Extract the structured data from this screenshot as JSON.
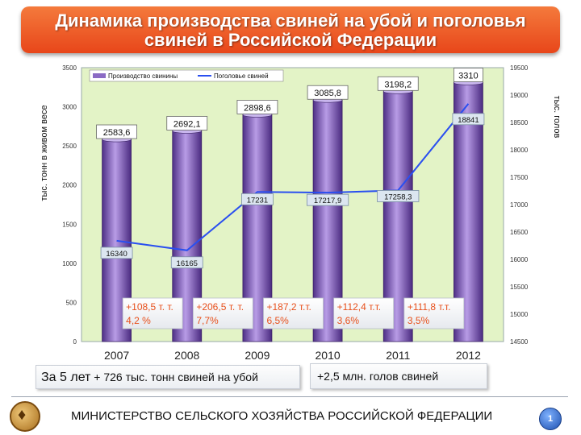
{
  "title": {
    "line1": "Динамика производства свиней на убой и поголовья",
    "line2": "свиней в Российской Федерации"
  },
  "chart_data": {
    "type": "bar+line",
    "categories": [
      "2007",
      "2008",
      "2009",
      "2010",
      "2011",
      "2012"
    ],
    "series": [
      {
        "name": "Производство свинины",
        "kind": "bar",
        "axis": "left",
        "values": [
          2583.6,
          2692.1,
          2898.6,
          3085.8,
          3198.2,
          3310
        ],
        "labels": [
          "2583,6",
          "2692,1",
          "2898,6",
          "3085,8",
          "3198,2",
          "3310"
        ]
      },
      {
        "name": "Поголовье свиней",
        "kind": "line",
        "axis": "right",
        "values": [
          16340,
          16165,
          17231,
          17217.9,
          17258.3,
          18841
        ],
        "labels": [
          "16340",
          "16165",
          "17231",
          "17217,9",
          "17258,3",
          "18841"
        ]
      }
    ],
    "ylabel_left": "тыс. тонн в живом весе",
    "ylabel_right": "тыс. голов",
    "ylim_left": [
      0,
      3500
    ],
    "ylim_right": [
      14500,
      19500
    ],
    "yticks_left": [
      0,
      500,
      1000,
      1500,
      2000,
      2500,
      3000,
      3500
    ],
    "yticks_right": [
      14500,
      15000,
      15500,
      16000,
      16500,
      17000,
      17500,
      18000,
      18500,
      19000,
      19500
    ],
    "growth_annotations": [
      {
        "line1": "+108,5 т. т.",
        "line2": "4,2 %"
      },
      {
        "line1": "+206,5 т. т.",
        "line2": "7,7%"
      },
      {
        "line1": "+187,2 т.т.",
        "line2": "6,5%"
      },
      {
        "line1": "+112,4 т.т.",
        "line2": "3,6%"
      },
      {
        "line1": "+111,8 т.т.",
        "line2": "3,5%"
      }
    ],
    "legend_position": "top-left",
    "grid": false,
    "colors": {
      "bar": "#8b6ac4",
      "line": "#2a4ff0",
      "plot_background": "#e3f3c6",
      "annotation_text": "#e8501b"
    }
  },
  "notes": {
    "left_prefix": "За 5 лет",
    "left_rest": " + 726 тыс. тонн свиней на убой",
    "right": "+2,5 млн. голов свиней"
  },
  "footer": {
    "ministry": "МИНИСТЕРСТВО СЕЛЬСКОГО ХОЗЯЙСТВА РОССИЙСКОЙ ФЕДЕРАЦИИ",
    "page_number": "1"
  },
  "icons": {
    "logo": "ministry-emblem-icon"
  }
}
